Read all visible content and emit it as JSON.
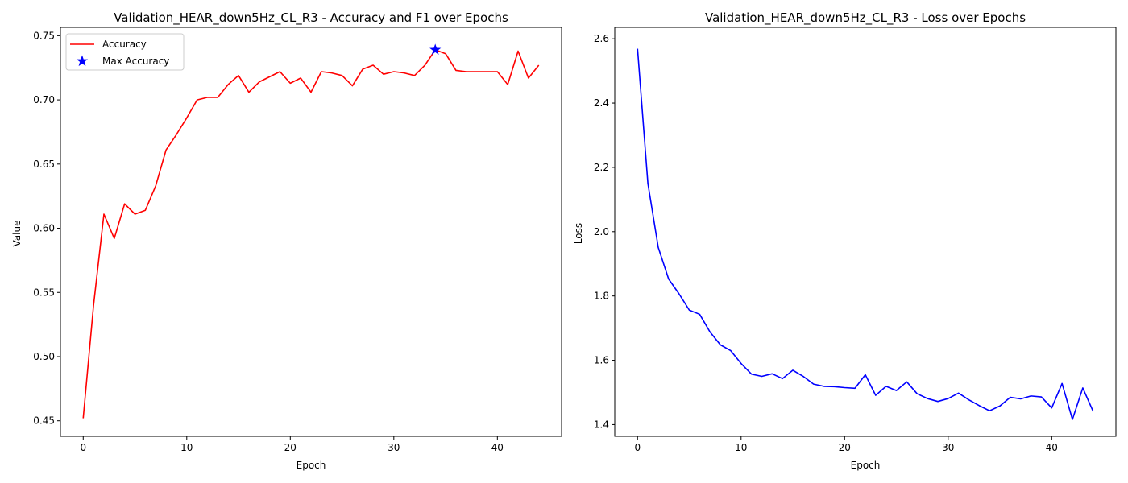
{
  "chart_data": [
    {
      "type": "line",
      "title": "Validation_HEAR_down5Hz_CL_R3 - Accuracy and F1 over Epochs",
      "xlabel": "Epoch",
      "ylabel": "Value",
      "xlim": [
        -2.2,
        46.2
      ],
      "ylim": [
        0.4379,
        0.7565
      ],
      "xticks": [
        0,
        10,
        20,
        30,
        40
      ],
      "yticks": [
        0.45,
        0.5,
        0.55,
        0.6,
        0.65,
        0.7,
        0.75
      ],
      "ytick_labels": [
        "0.45",
        "0.50",
        "0.55",
        "0.60",
        "0.65",
        "0.70",
        "0.75"
      ],
      "grid": false,
      "legend_position": "upper-left",
      "series": [
        {
          "name": "Accuracy",
          "color": "#ff0000",
          "x": [
            0,
            1,
            2,
            3,
            4,
            5,
            6,
            7,
            8,
            9,
            10,
            11,
            12,
            13,
            14,
            15,
            16,
            17,
            18,
            19,
            20,
            21,
            22,
            23,
            24,
            25,
            26,
            27,
            28,
            29,
            30,
            31,
            32,
            33,
            34,
            35,
            36,
            37,
            38,
            39,
            40,
            41,
            42,
            43,
            44
          ],
          "values": [
            0.452,
            0.54,
            0.611,
            0.592,
            0.619,
            0.611,
            0.614,
            0.633,
            0.661,
            0.673,
            0.686,
            0.7,
            0.702,
            0.702,
            0.712,
            0.719,
            0.706,
            0.714,
            0.718,
            0.722,
            0.713,
            0.717,
            0.706,
            0.722,
            0.721,
            0.719,
            0.711,
            0.724,
            0.727,
            0.72,
            0.722,
            0.721,
            0.719,
            0.727,
            0.739,
            0.736,
            0.723,
            0.722,
            0.722,
            0.722,
            0.722,
            0.712,
            0.738,
            0.717,
            0.727
          ]
        }
      ],
      "markers": [
        {
          "name": "Max Accuracy",
          "color": "#0000ff",
          "shape": "star-icon",
          "x": 34,
          "y": 0.739
        }
      ]
    },
    {
      "type": "line",
      "title": "Validation_HEAR_down5Hz_CL_R3 - Loss over Epochs",
      "xlabel": "Epoch",
      "ylabel": "Loss",
      "xlim": [
        -2.2,
        46.2
      ],
      "ylim": [
        1.3635,
        2.6355
      ],
      "xticks": [
        0,
        10,
        20,
        30,
        40
      ],
      "yticks": [
        1.4,
        1.6,
        1.8,
        2.0,
        2.2,
        2.4,
        2.6
      ],
      "ytick_labels": [
        "1.4",
        "1.6",
        "1.8",
        "2.0",
        "2.2",
        "2.4",
        "2.6"
      ],
      "grid": false,
      "series": [
        {
          "color": "#0000ff",
          "x": [
            0,
            1,
            2,
            3,
            4,
            5,
            6,
            7,
            8,
            9,
            10,
            11,
            12,
            13,
            14,
            15,
            16,
            17,
            18,
            19,
            20,
            21,
            22,
            23,
            24,
            25,
            26,
            27,
            28,
            29,
            30,
            31,
            32,
            33,
            34,
            35,
            36,
            37,
            38,
            39,
            40,
            41,
            42,
            43,
            44
          ],
          "values": [
            2.569,
            2.15,
            1.951,
            1.853,
            1.807,
            1.756,
            1.743,
            1.688,
            1.648,
            1.63,
            1.59,
            1.557,
            1.55,
            1.558,
            1.543,
            1.569,
            1.55,
            1.526,
            1.519,
            1.518,
            1.515,
            1.513,
            1.555,
            1.491,
            1.519,
            1.506,
            1.533,
            1.496,
            1.481,
            1.472,
            1.481,
            1.498,
            1.477,
            1.459,
            1.443,
            1.458,
            1.485,
            1.48,
            1.489,
            1.486,
            1.452,
            1.528,
            1.416,
            1.514,
            1.441
          ]
        }
      ]
    }
  ]
}
